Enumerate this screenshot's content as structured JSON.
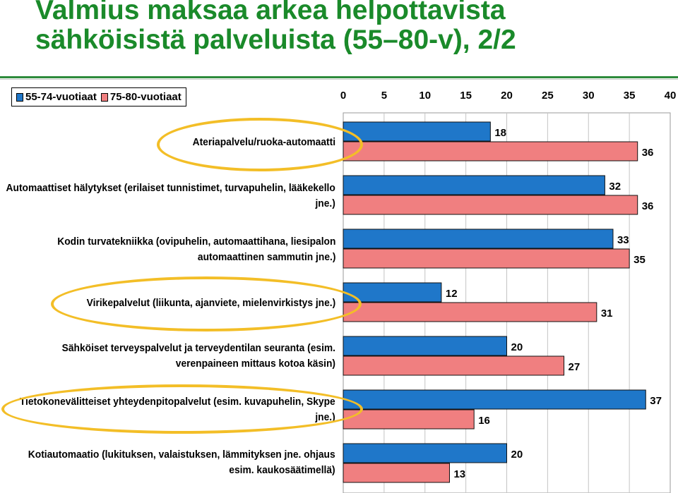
{
  "title": {
    "line1": "Valmius maksaa arkea helpottavista",
    "line2": "sähköisistä palveluista (55–80-v), 2/2"
  },
  "colors": {
    "title": "#1a8a2a",
    "series1": "#1f77c9",
    "series2": "#f07f80",
    "highlight": "#f3be27"
  },
  "chart_data": {
    "type": "bar",
    "orientation": "horizontal",
    "legend_position": "top-left",
    "xlim": [
      0,
      40
    ],
    "x_ticks": [
      "0",
      "5",
      "10",
      "15",
      "20",
      "25",
      "30",
      "35",
      "40"
    ],
    "grid": true,
    "categories": [
      [
        "Ateriapalvelu/ruoka-automaatti"
      ],
      [
        "Automaattiset hälytykset (erilaiset tunnistimet, turvapuhelin, lääkekello",
        "jne.)"
      ],
      [
        "Kodin turvatekniikka (ovipuhelin, automaattihana, liesipalon",
        "automaattinen sammutin jne.)"
      ],
      [
        "Virikepalvelut (liikunta, ajanviete, mielenvirkistys jne.)"
      ],
      [
        "Sähköiset terveyspalvelut ja terveydentilan seuranta (esim.",
        "verenpaineen mittaus kotoa käsin)"
      ],
      [
        "Tietokonevälitteiset yhteydenpitopalvelut (esim. kuvapuhelin, Skype",
        "jne.)"
      ],
      [
        "Kotiautomaatio (lukituksen, valaistuksen, lämmityksen jne. ohjaus",
        "esim. kaukosäätimellä)"
      ]
    ],
    "series": [
      {
        "name": "55-74-vuotiaat",
        "values": [
          18,
          32,
          33,
          12,
          20,
          37,
          20
        ]
      },
      {
        "name": "75-80-vuotiaat",
        "values": [
          36,
          36,
          35,
          31,
          27,
          16,
          13
        ]
      }
    ],
    "highlighted_categories": [
      0,
      3,
      5
    ]
  }
}
